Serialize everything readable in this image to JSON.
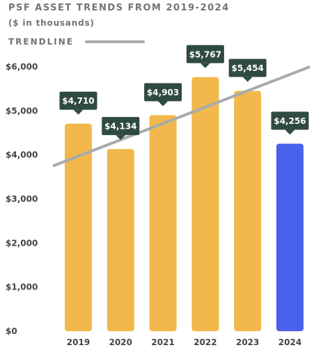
{
  "colors": {
    "bar": "#f2b84b",
    "highlight": "#4a61ec",
    "callout": "#2f4a42",
    "trendline": "#a8aaac",
    "text": "#3f454a"
  },
  "chart_data": {
    "type": "bar",
    "title": "PSF ASSET TRENDS FROM 2019-2024",
    "subtitle": "($ in thousands)",
    "legend": {
      "label": "TRENDLINE",
      "placement": "top-left"
    },
    "categories": [
      "2019",
      "2020",
      "2021",
      "2022",
      "2023",
      "2024"
    ],
    "values": [
      4710,
      4134,
      4903,
      5767,
      5454,
      4256
    ],
    "data_labels": [
      "$4,710",
      "$4,134",
      "$4,903",
      "$5,767",
      "$5,454",
      "$4,256"
    ],
    "highlight_category": "2024",
    "ylim": [
      0,
      6000
    ],
    "yticks": [
      0,
      1000,
      2000,
      3000,
      4000,
      5000,
      6000
    ],
    "ytick_labels": [
      "$0",
      "$1,000",
      "$2,000",
      "$3,000",
      "$4,000",
      "$5,000",
      "$6,000"
    ],
    "trendline": {
      "start_value": 3750,
      "end_value": 6000
    },
    "grid": false
  }
}
